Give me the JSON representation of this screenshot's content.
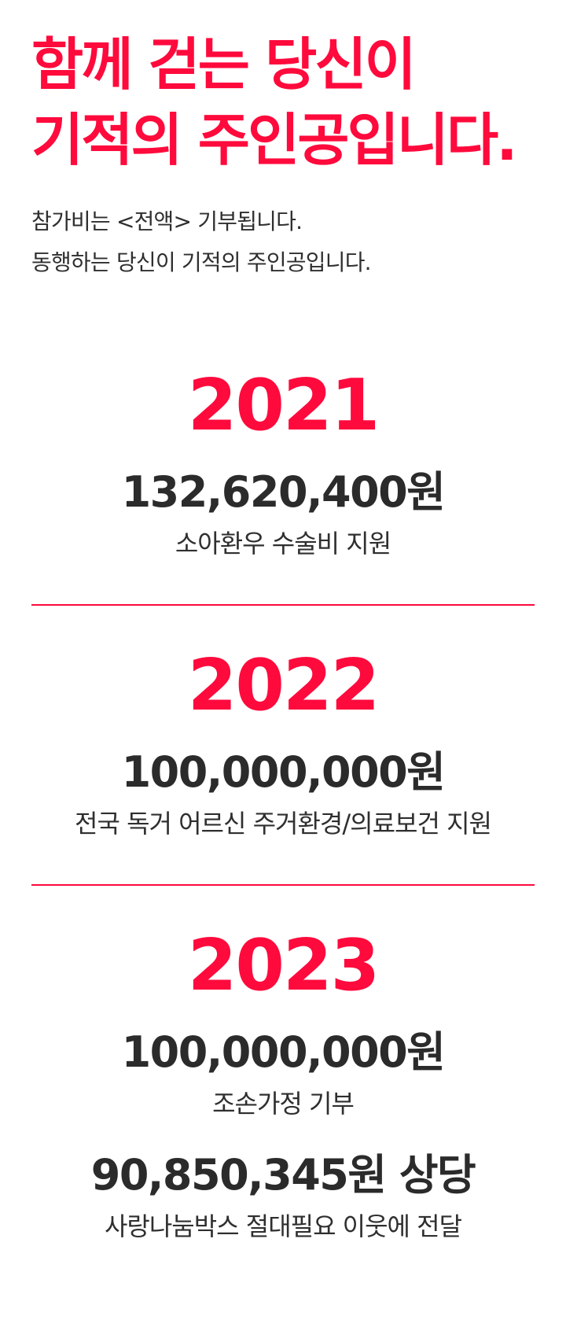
{
  "headline": {
    "line1": "함께 걷는 당신이",
    "line2": "기적의 주인공입니다."
  },
  "intro": {
    "line1": "참가비는 <전액> 기부됩니다.",
    "line2": "동행하는 당신이 기적의 주인공입니다."
  },
  "years": [
    {
      "year": "2021",
      "amount": "132,620,400원",
      "desc": "소아환우 수술비 지원"
    },
    {
      "year": "2022",
      "amount": "100,000,000원",
      "desc": "전국 독거 어르신 주거환경/의료보건 지원"
    },
    {
      "year": "2023",
      "amount": "100,000,000원",
      "desc": "조손가정 기부",
      "amount2": "90,850,345원 상당",
      "desc2": "사랑나눔박스 절대필요 이웃에 전달"
    }
  ],
  "colors": {
    "accent": "#ff0a3c",
    "text": "#2b2b2b",
    "background": "#ffffff"
  }
}
